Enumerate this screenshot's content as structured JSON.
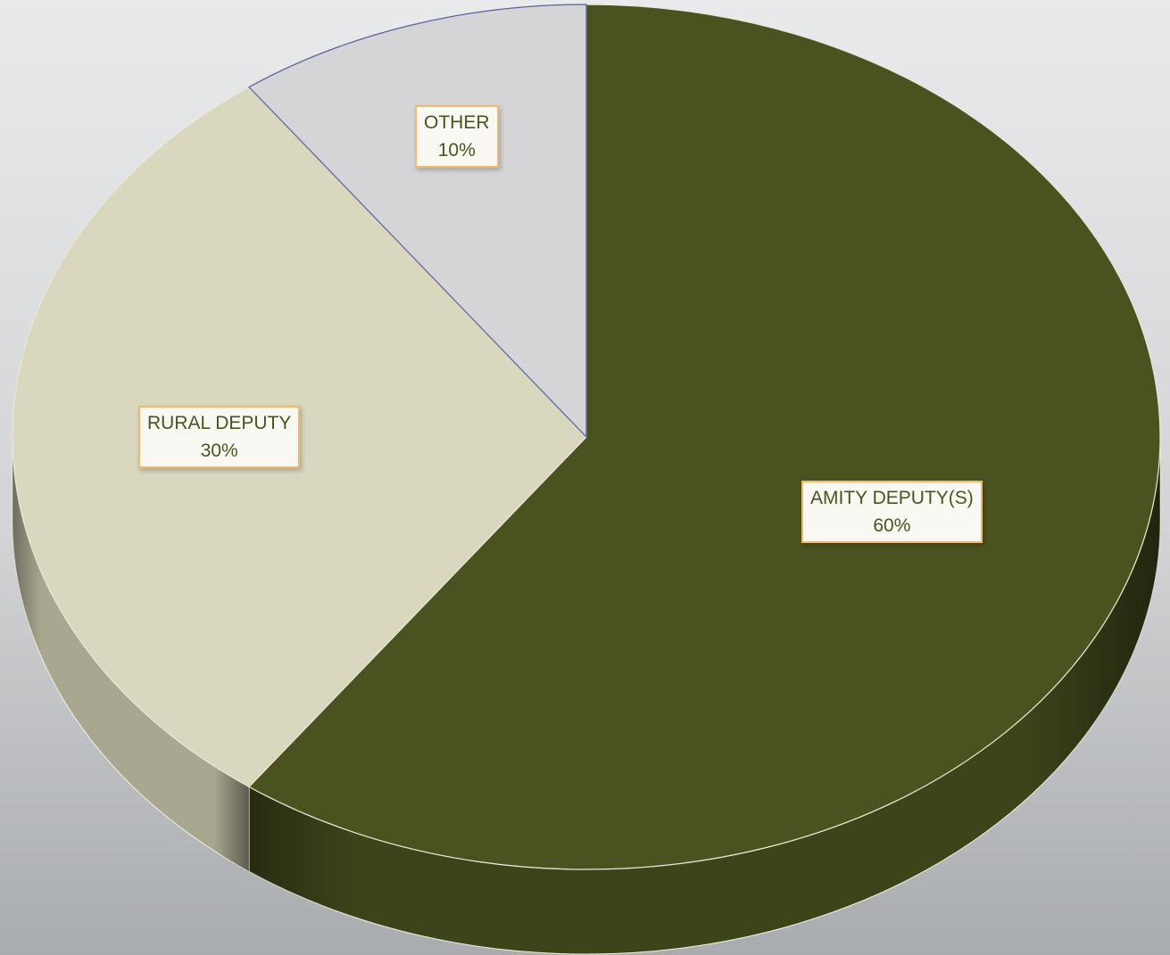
{
  "chart_data": {
    "type": "pie",
    "title": "",
    "style": "3d",
    "legend": "none",
    "slices": [
      {
        "label": "AMITY DEPUTY(S)",
        "value": 60,
        "value_label": "60%",
        "color": "#4a5320",
        "side_color": "#3c441a"
      },
      {
        "label": "RURAL DEPUTY",
        "value": 30,
        "value_label": "30%",
        "color": "#d9d7bd",
        "side_color": "#a9a78f"
      },
      {
        "label": "OTHER",
        "value": 10,
        "value_label": "10%",
        "color": "#d5d5d7",
        "side_color": "#a6a6a8"
      }
    ]
  }
}
